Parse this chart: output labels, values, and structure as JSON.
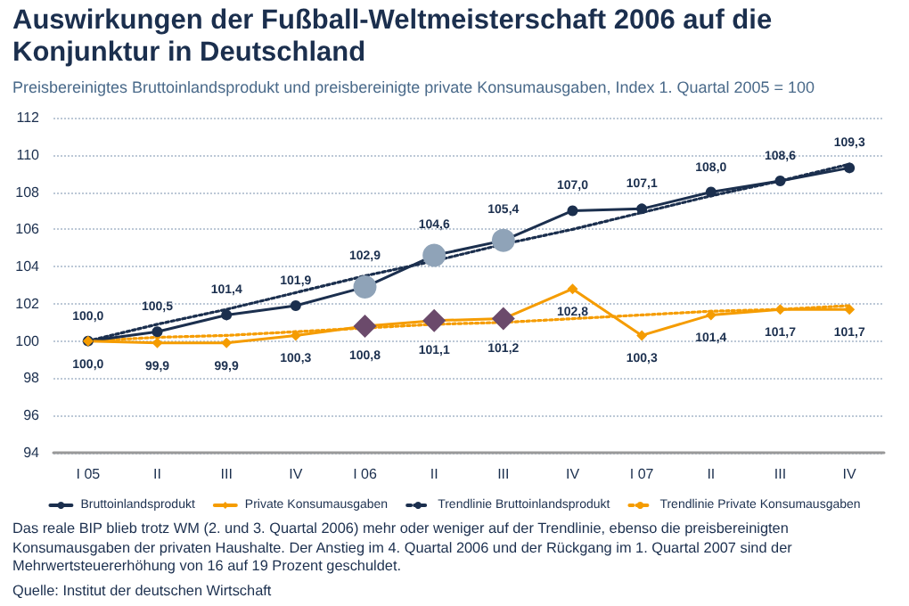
{
  "chart_data": {
    "type": "line",
    "title": "Auswirkungen der Fußball-Weltmeisterschaft 2006 auf die Konjunktur in Deutschland",
    "subtitle": "Preisbereinigtes Bruttoinlandsprodukt und preisbereinigte private Konsumausgaben, Index 1. Quartal 2005 = 100",
    "categories": [
      "I 05",
      "II",
      "III",
      "IV",
      "I 06",
      "II",
      "III",
      "IV",
      "I 07",
      "II",
      "III",
      "IV"
    ],
    "series": [
      {
        "name": "Bruttoinlandsprodukt",
        "color": "#1b2f4e",
        "marker": "circle",
        "line_style": "solid",
        "values": [
          100.0,
          100.5,
          101.4,
          101.9,
          102.9,
          104.6,
          105.4,
          107.0,
          107.1,
          108.0,
          108.6,
          109.3
        ],
        "value_labels": [
          "100,0",
          "100,5",
          "101,4",
          "101,9",
          "102,9",
          "104,6",
          "105,4",
          "107,0",
          "107,1",
          "108,0",
          "108,6",
          "109,3"
        ],
        "colors": [
          "#1b2f4e",
          "#1b2f4e",
          "#1b2f4e",
          "#1b2f4e",
          "#8fa3b8",
          "#8fa3b8",
          "#8fa3b8",
          "#1b2f4e",
          "#1b2f4e",
          "#1b2f4e",
          "#1b2f4e",
          "#1b2f4e"
        ]
      },
      {
        "name": "Private Konsumausgaben",
        "color": "#f59c00",
        "marker": "diamond",
        "line_style": "solid",
        "values": [
          100.0,
          99.9,
          99.9,
          100.3,
          100.8,
          101.1,
          101.2,
          102.8,
          100.3,
          101.4,
          101.7,
          101.7
        ],
        "value_labels": [
          "100,0",
          "99,9",
          "99,9",
          "100,3",
          "100,8",
          "101,1",
          "101,2",
          "102,8",
          "100,3",
          "101,4",
          "101,7",
          "101,7"
        ],
        "colors": [
          "#f59c00",
          "#f59c00",
          "#f59c00",
          "#f59c00",
          "#6b4a6b",
          "#6b4a6b",
          "#6b4a6b",
          "#f59c00",
          "#f59c00",
          "#f59c00",
          "#f59c00",
          "#f59c00"
        ]
      },
      {
        "name": "Trendlinie Bruttoinlandsprodukt",
        "color": "#1b2f4e",
        "marker": "none",
        "line_style": "dotted",
        "values": [
          100.0,
          100.9,
          101.7,
          102.6,
          103.5,
          104.3,
          105.2,
          106.0,
          106.9,
          107.8,
          108.6,
          109.5
        ]
      },
      {
        "name": "Trendlinie Private Konsumausgaben",
        "color": "#f59c00",
        "marker": "none",
        "line_style": "dotted",
        "values": [
          100.0,
          100.2,
          100.3,
          100.5,
          100.7,
          100.9,
          101.0,
          101.2,
          101.4,
          101.6,
          101.7,
          101.9
        ]
      }
    ],
    "ylim": [
      94,
      112
    ],
    "yticks": [
      94,
      96,
      98,
      100,
      102,
      104,
      106,
      108,
      110,
      112
    ],
    "grid": "y",
    "legend": "bottom",
    "annotations": [
      "Das reale BIP blieb trotz WM (2. und 3. Quartal 2006) mehr oder weniger auf der Trendlinie, ebenso die preisbereinigten Konsumausgaben der privaten Haushalte. Der Anstieg im 4. Quartal 2006 und der Rückgang im 1. Quartal 2007 sind der Mehrwertsteuererhöhung von 16 auf 19 Prozent geschuldet.",
      "Quelle: Institut der deutschen Wirtschaft"
    ]
  }
}
